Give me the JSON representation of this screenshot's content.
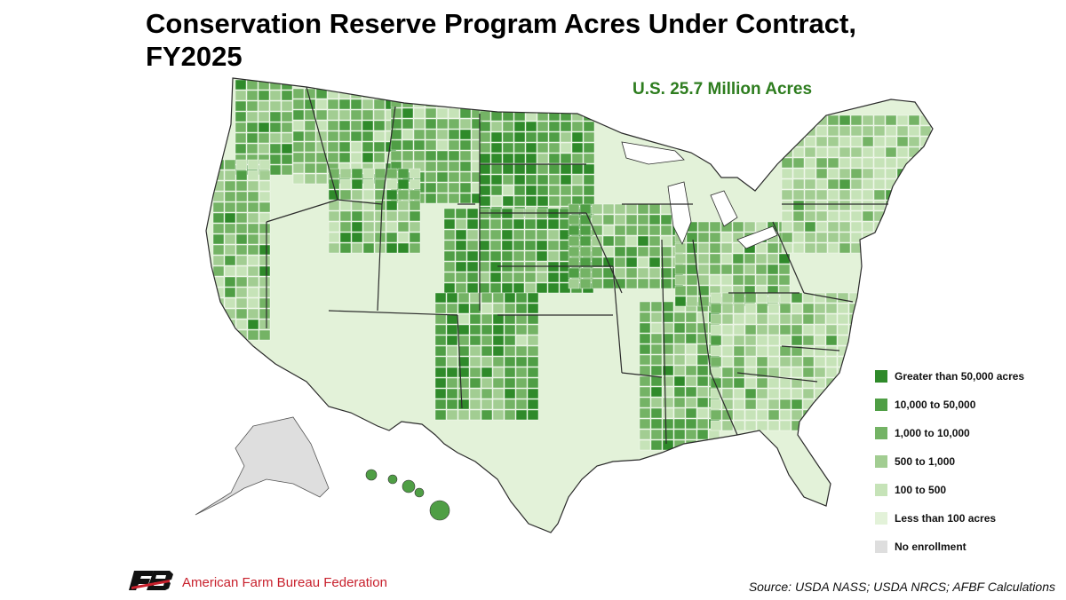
{
  "title": {
    "line1": "Conservation Reserve Program Acres Under Contract,",
    "line2": "FY2025"
  },
  "total_label": "U.S. 25.7 Million Acres",
  "legend": {
    "items": [
      {
        "label": "Greater than 50,000 acres",
        "color": "#2f8a2a"
      },
      {
        "label": "10,000 to 50,000",
        "color": "#4f9e45"
      },
      {
        "label": "1,000 to 10,000",
        "color": "#74b365"
      },
      {
        "label": "500 to 1,000",
        "color": "#a2cd92"
      },
      {
        "label": "100 to 500",
        "color": "#c6e3b8"
      },
      {
        "label": "Less than 100 acres",
        "color": "#e3f2d9"
      },
      {
        "label": "No enrollment",
        "color": "#dedede"
      }
    ]
  },
  "colors": {
    "title": "#000000",
    "total": "#2e7d1f",
    "org_name": "#c8202c",
    "state_border": "#2b2b2b"
  },
  "footer": {
    "org_name": "American Farm Bureau Federation",
    "source": "Source: USDA NASS; USDA NRCS; AFBF Calculations"
  }
}
